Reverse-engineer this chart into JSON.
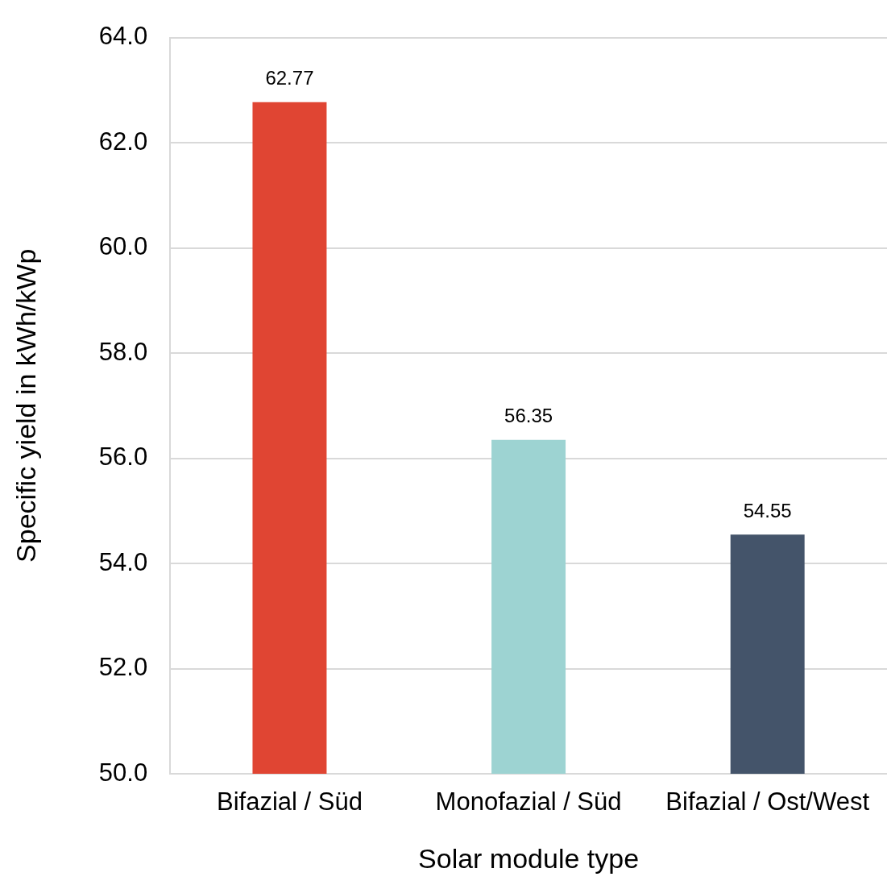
{
  "chart_data": {
    "type": "bar",
    "xlabel": "Solar module type",
    "ylabel": "Specific yield in kWh/kWp",
    "categories": [
      "Bifazial / Süd",
      "Monofazial / Süd",
      "Bifazial / Ost/West"
    ],
    "values": [
      62.77,
      56.35,
      54.55
    ],
    "colors": [
      "#e04533",
      "#9dd3d2",
      "#44546a"
    ],
    "ylim": [
      50,
      64
    ],
    "yticks": [
      {
        "value": 50,
        "label": "50.0"
      },
      {
        "value": 52,
        "label": "52.0"
      },
      {
        "value": 54,
        "label": "54.0"
      },
      {
        "value": 56,
        "label": "56.0"
      },
      {
        "value": 58,
        "label": "58.0"
      },
      {
        "value": 60,
        "label": "60.0"
      },
      {
        "value": 62,
        "label": "62.0"
      },
      {
        "value": 64,
        "label": "64.0"
      }
    ],
    "grid": "y",
    "data_labels": true
  }
}
